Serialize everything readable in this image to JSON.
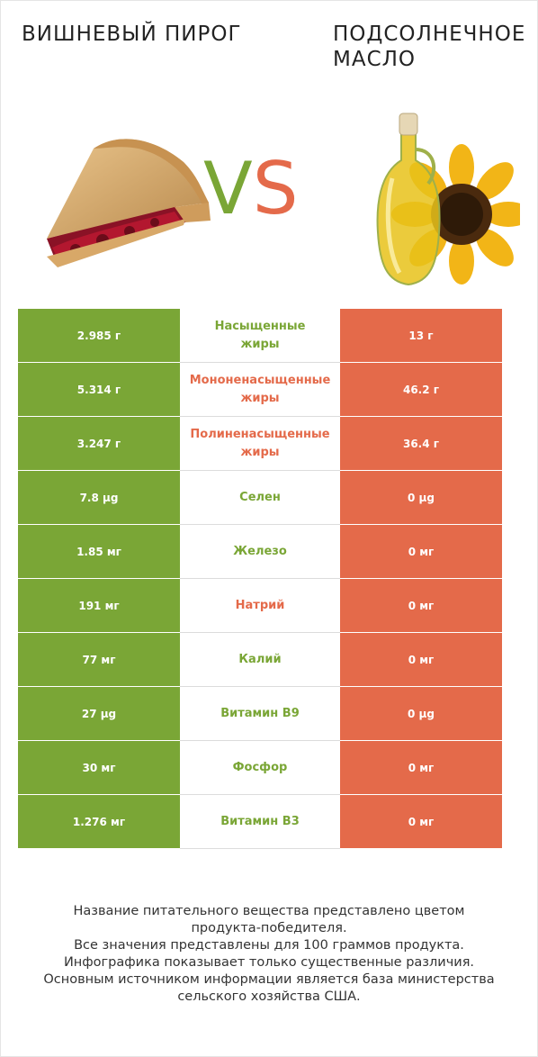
{
  "header": {
    "left_title": "Вишневый пирог",
    "right_title": "Подсолнечное\nмасло",
    "vs_v": "V",
    "vs_s": "S"
  },
  "colors": {
    "left_winner": "#7aa636",
    "right_winner": "#e46a4a"
  },
  "chart_data": {
    "type": "table",
    "columns": [
      "Вишневый пирог",
      "Подсолнечное масло"
    ],
    "rows": [
      {
        "nutrient": "Насыщенные жиры",
        "left": "2.985 г",
        "right": "13 г",
        "winner": "left"
      },
      {
        "nutrient": "Мононенасыщенные жиры",
        "left": "5.314 г",
        "right": "46.2 г",
        "winner": "right"
      },
      {
        "nutrient": "Полиненасыщенные жиры",
        "left": "3.247 г",
        "right": "36.4 г",
        "winner": "right"
      },
      {
        "nutrient": "Селен",
        "left": "7.8 µg",
        "right": "0 µg",
        "winner": "left"
      },
      {
        "nutrient": "Железо",
        "left": "1.85 мг",
        "right": "0 мг",
        "winner": "left"
      },
      {
        "nutrient": "Натрий",
        "left": "191 мг",
        "right": "0 мг",
        "winner": "right"
      },
      {
        "nutrient": "Калий",
        "left": "77 мг",
        "right": "0 мг",
        "winner": "left"
      },
      {
        "nutrient": "Витамин B9",
        "left": "27 µg",
        "right": "0 µg",
        "winner": "left"
      },
      {
        "nutrient": "Фосфор",
        "left": "30 мг",
        "right": "0 мг",
        "winner": "left"
      },
      {
        "nutrient": "Витамин B3",
        "left": "1.276 мг",
        "right": "0 мг",
        "winner": "left"
      }
    ]
  },
  "footer": {
    "lines": [
      "Название питательного вещества представлено цветом",
      "продукта-победителя.",
      "Все значения представлены для 100 граммов продукта.",
      "Инфографика показывает только существенные различия.",
      "Основным источником информации является база министерства",
      "сельского хозяйства США."
    ]
  }
}
